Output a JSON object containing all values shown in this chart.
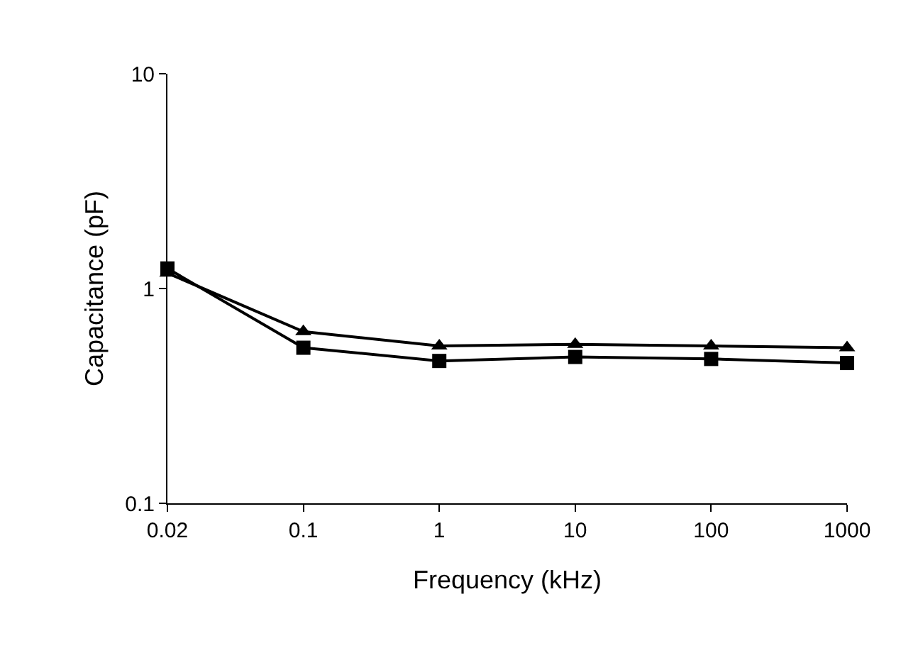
{
  "chart_data": {
    "type": "line",
    "xlabel": "Frequency (kHz)",
    "ylabel": "Capacitance (pF)",
    "categories": [
      "0.02",
      "0.1",
      "1",
      "10",
      "100",
      "1000"
    ],
    "series": [
      {
        "color": "#000000",
        "marker": "triangle",
        "values": [
          1.18,
          0.63,
          0.54,
          0.55,
          0.54,
          0.53
        ]
      },
      {
        "color": "#000000",
        "marker": "square",
        "values": [
          1.24,
          0.53,
          0.46,
          0.48,
          0.47,
          0.45
        ]
      }
    ],
    "log": "y",
    "ylim": [
      0.1,
      10
    ],
    "yticks": [
      0.1,
      1,
      10
    ],
    "line_style": "solid"
  }
}
